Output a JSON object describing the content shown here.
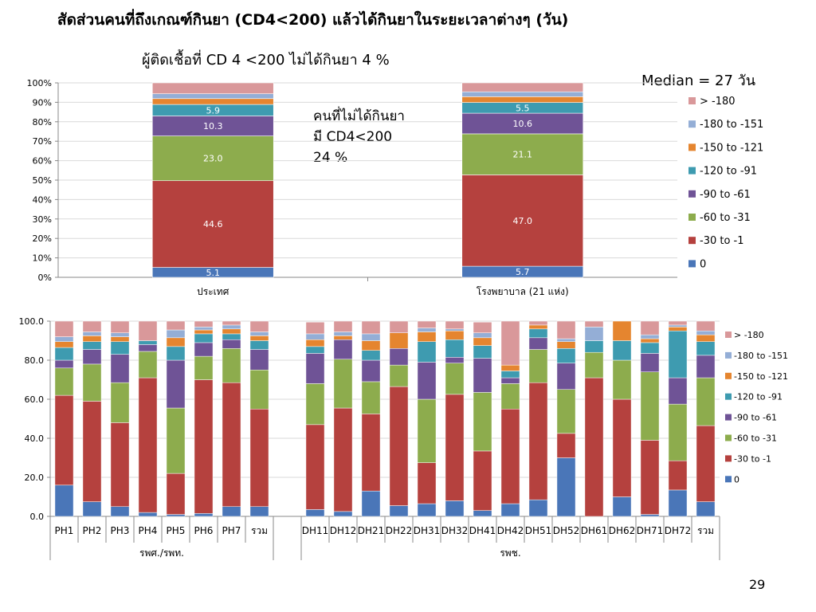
{
  "slide": {
    "title": "สัดส่วนคนที่ถึงเกณฑ์กินยา (CD4<200) แล้วได้กินยาในระยะเวลาต่างๆ (วัน)",
    "top_subtitle": "ผู้ติดเชื้อที่ CD 4 <200  ไม่ได้กินยา 4 %",
    "median_note": "Median =  27 วัน",
    "untreated_note_lines": [
      "คนที่ไม่ได้กินยา",
      "มี CD4<200",
      "24 %"
    ],
    "page_number": "29"
  },
  "colors": {
    "0": "#4a76b8",
    "-30 to -1": "#b5413e",
    "-60 to -31": "#8dac4d",
    "-90 to -61": "#6f5396",
    "-120 to -91": "#3e9bb0",
    "-150 to -121": "#e5852f",
    "-180 to -151": "#94aed6",
    "> -180": "#d9989a",
    "grid": "#d9d9d9",
    "axis": "#888888"
  },
  "chart_data": [
    {
      "type": "bar",
      "stacked": true,
      "percent_axis": true,
      "categories": [
        "ประเทศ",
        "โรงพยาบาล (21 แห่ง)"
      ],
      "y_tick_labels": [
        "0%",
        "10%",
        "20%",
        "30%",
        "40%",
        "50%",
        "60%",
        "70%",
        "80%",
        "90%",
        "100%"
      ],
      "ylim": [
        0,
        100
      ],
      "legend_position": "right",
      "legend_order": [
        "> -180",
        "-180 to -151",
        "-150 to -121",
        "-120 to -91",
        "-90 to -61",
        "-60 to -31",
        "-30 to -1",
        "0"
      ],
      "series": [
        {
          "name": "0",
          "values": [
            5.1,
            5.7
          ],
          "labels": [
            "5.1",
            "5.7"
          ]
        },
        {
          "name": "-30 to -1",
          "values": [
            44.6,
            47.0
          ],
          "labels": [
            "44.6",
            "47.0"
          ]
        },
        {
          "name": "-60 to -31",
          "values": [
            23.0,
            21.1
          ],
          "labels": [
            "23.0",
            "21.1"
          ]
        },
        {
          "name": "-90 to -61",
          "values": [
            10.3,
            10.6
          ],
          "labels": [
            "10.3",
            "10.6"
          ]
        },
        {
          "name": "-120 to -91",
          "values": [
            5.9,
            5.5
          ],
          "labels": [
            "5.9",
            "5.5"
          ]
        },
        {
          "name": "-150 to -121",
          "values": [
            3.0,
            3.0
          ],
          "labels": [
            "",
            ""
          ]
        },
        {
          "name": "-180 to -151",
          "values": [
            2.5,
            2.5
          ],
          "labels": [
            "",
            ""
          ]
        },
        {
          "name": "> -180",
          "values": [
            5.6,
            4.6
          ],
          "labels": [
            "",
            ""
          ]
        }
      ]
    },
    {
      "type": "bar",
      "stacked": true,
      "categories": [
        "PH1",
        "PH2",
        "PH3",
        "PH4",
        "PH5",
        "PH6",
        "PH7",
        "รวม",
        "",
        "DH11",
        "DH12",
        "DH21",
        "DH22",
        "DH31",
        "DH32",
        "DH41",
        "DH42",
        "DH51",
        "DH52",
        "DH61",
        "DH62",
        "DH71",
        "DH72",
        "รวม"
      ],
      "groups": [
        {
          "label": "รพศ./รพท.",
          "from": 0,
          "to": 7
        },
        {
          "label": "รพช.",
          "from": 9,
          "to": 23
        }
      ],
      "y_tick_labels": [
        "0.0",
        "20.0",
        "40.0",
        "60.0",
        "80.0",
        "100.0"
      ],
      "ylim": [
        0,
        100
      ],
      "legend_position": "right",
      "legend_order": [
        "> -180",
        "-180 to -151",
        "-150 to -121",
        "-120 to -91",
        "-90 to -61",
        "-60 to -31",
        "-30 to -1",
        "0"
      ],
      "series": [
        {
          "name": "0",
          "values": [
            16,
            7.5,
            5,
            2,
            1,
            1.5,
            5,
            5,
            0,
            3.5,
            2.5,
            13,
            5.5,
            6.5,
            8,
            3,
            6.5,
            8.5,
            30,
            0,
            10,
            1,
            13.5,
            7.5
          ]
        },
        {
          "name": "-30 to -1",
          "values": [
            46,
            51.5,
            43,
            69,
            21,
            68.5,
            63.5,
            50,
            0,
            43.5,
            53,
            39.5,
            61,
            21,
            54.5,
            30.5,
            48.5,
            60,
            12.5,
            71,
            50,
            38,
            15,
            39
          ]
        },
        {
          "name": "-60 to -31",
          "values": [
            14,
            19,
            20.5,
            13.5,
            33.5,
            12,
            17.5,
            20,
            0,
            21,
            25,
            16.5,
            11,
            32.5,
            16,
            30,
            13,
            17,
            22.5,
            13,
            20,
            35,
            29,
            24.5
          ]
        },
        {
          "name": "-90 to -61",
          "values": [
            4,
            7.5,
            14.5,
            3.5,
            24.5,
            7,
            4.5,
            10.5,
            0,
            15.5,
            10,
            11,
            8.5,
            19,
            3,
            17.5,
            3,
            6,
            13.5,
            0,
            0,
            9.5,
            13.5,
            11.5
          ]
        },
        {
          "name": "-120 to -91",
          "values": [
            6.5,
            4,
            6.5,
            2,
            7,
            4.5,
            3,
            4.5,
            0,
            3.5,
            0,
            5,
            0,
            10.5,
            9,
            6.5,
            3.5,
            4.5,
            7.5,
            6,
            10,
            5.5,
            24,
            7
          ]
        },
        {
          "name": "-150 to -121",
          "values": [
            3,
            3,
            2.5,
            0,
            4.5,
            2,
            2.5,
            2.5,
            0,
            3.5,
            2,
            5,
            8,
            5,
            4.5,
            4,
            3,
            2,
            3.5,
            0,
            10,
            2,
            2,
            3.5
          ]
        },
        {
          "name": "-180 to -151",
          "values": [
            2.5,
            2,
            2,
            0,
            4,
            1.5,
            2,
            2,
            0,
            3,
            2,
            3.5,
            0,
            2,
            1,
            2.5,
            0,
            0,
            1.5,
            7,
            0,
            2,
            1,
            2
          ]
        },
        {
          "name": "> -180",
          "values": [
            8,
            5.5,
            6,
            10,
            4.5,
            3,
            2,
            5.5,
            0,
            6,
            5.5,
            6.5,
            6,
            3.5,
            4,
            5.5,
            22.5,
            2,
            9,
            3,
            0,
            7,
            2,
            5
          ]
        }
      ]
    }
  ]
}
